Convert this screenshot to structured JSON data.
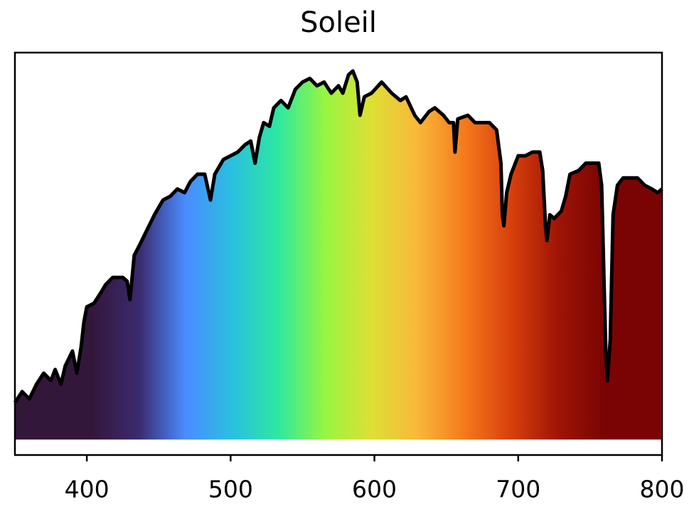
{
  "chart_data": {
    "type": "area",
    "title": "Soleil",
    "x": [
      350,
      355,
      360,
      365,
      370,
      375,
      378,
      382,
      385,
      390,
      393,
      396,
      398,
      400,
      405,
      410,
      413,
      418,
      425,
      428,
      430,
      433,
      437,
      442,
      447,
      450,
      453,
      458,
      463,
      468,
      472,
      477,
      482,
      486,
      489,
      495,
      500,
      505,
      510,
      514,
      517,
      520,
      523,
      527,
      530,
      535,
      540,
      545,
      550,
      555,
      560,
      565,
      570,
      575,
      578,
      582,
      585,
      588,
      590,
      593,
      598,
      605,
      612,
      618,
      622,
      628,
      632,
      638,
      642,
      648,
      652,
      655,
      656,
      658,
      665,
      670,
      680,
      685,
      688,
      689,
      690,
      692,
      695,
      700,
      705,
      710,
      715,
      717,
      719,
      720,
      722,
      725,
      730,
      733,
      736,
      742,
      747,
      752,
      756,
      758,
      760,
      761,
      762,
      764,
      766,
      769,
      773,
      778,
      783,
      788,
      793,
      797,
      800
    ],
    "values": [
      0.1,
      0.13,
      0.11,
      0.15,
      0.18,
      0.16,
      0.19,
      0.15,
      0.2,
      0.24,
      0.18,
      0.25,
      0.32,
      0.36,
      0.37,
      0.4,
      0.42,
      0.44,
      0.44,
      0.43,
      0.38,
      0.5,
      0.53,
      0.57,
      0.61,
      0.63,
      0.65,
      0.66,
      0.68,
      0.67,
      0.7,
      0.72,
      0.72,
      0.65,
      0.72,
      0.76,
      0.77,
      0.78,
      0.8,
      0.81,
      0.75,
      0.82,
      0.86,
      0.85,
      0.9,
      0.92,
      0.9,
      0.95,
      0.97,
      0.98,
      0.96,
      0.97,
      0.94,
      0.96,
      0.94,
      0.99,
      1.0,
      0.97,
      0.88,
      0.93,
      0.94,
      0.97,
      0.94,
      0.92,
      0.93,
      0.88,
      0.86,
      0.89,
      0.9,
      0.88,
      0.86,
      0.86,
      0.78,
      0.87,
      0.88,
      0.86,
      0.86,
      0.84,
      0.75,
      0.61,
      0.58,
      0.67,
      0.72,
      0.77,
      0.77,
      0.78,
      0.78,
      0.73,
      0.58,
      0.54,
      0.61,
      0.6,
      0.62,
      0.66,
      0.72,
      0.73,
      0.75,
      0.75,
      0.75,
      0.69,
      0.38,
      0.23,
      0.16,
      0.27,
      0.61,
      0.69,
      0.71,
      0.71,
      0.71,
      0.69,
      0.68,
      0.67,
      0.68
    ],
    "line_color": "#000000",
    "colormap": [
      "#33173b",
      "#3b2a6e",
      "#4a8cff",
      "#29c0e0",
      "#2ee8a0",
      "#98f541",
      "#dde035",
      "#f9b73a",
      "#f57a1c",
      "#d8400c",
      "#a01505",
      "#7a0403"
    ],
    "xlim": [
      350,
      800
    ],
    "xticks": [
      400,
      500,
      600,
      700,
      800
    ],
    "ylim": [
      -0.042,
      1.05
    ]
  }
}
